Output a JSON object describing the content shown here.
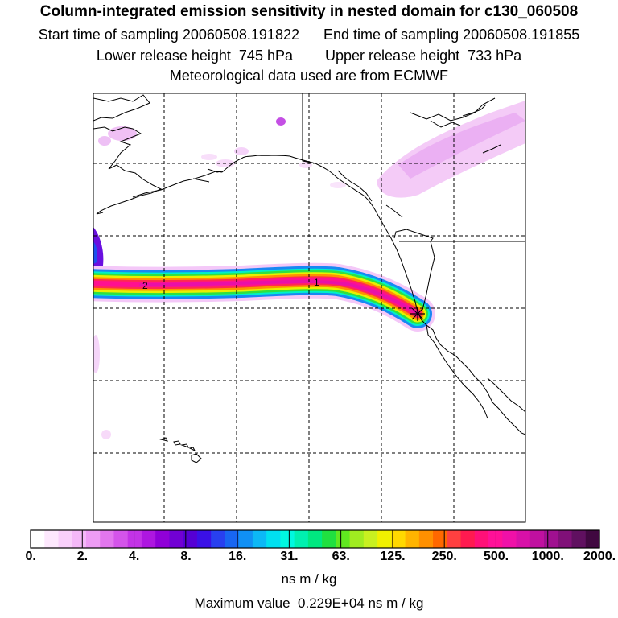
{
  "header": {
    "title": "Column-integrated emission sensitivity in nested domain for c130_060508",
    "start_label": "Start time of sampling 20060508.191822",
    "end_label": "End time of sampling 20060508.191855",
    "lower_label": "Lower release height  745 hPa",
    "upper_label": "Upper release height  733 hPa",
    "met_label": "Meteorological data used are from ECMWF"
  },
  "map": {
    "plume_labels": [
      "2",
      "1"
    ],
    "release_marker": "star"
  },
  "colorbar": {
    "tick_labels": [
      "0.",
      "2.",
      "4.",
      "8.",
      "16.",
      "31.",
      "63.",
      "125.",
      "250.",
      "500.",
      "1000.",
      "2000."
    ],
    "colors": [
      "#ffffff",
      "#fde8fd",
      "#f9d0fb",
      "#f4b8f8",
      "#ee9cf4",
      "#e276ee",
      "#d454ea",
      "#c333e6",
      "#ae17e0",
      "#9000d8",
      "#7100d4",
      "#5500d4",
      "#3a10e6",
      "#2840f0",
      "#1866f2",
      "#1090f4",
      "#0cb8f6",
      "#00e0f0",
      "#00f8e0",
      "#00f0b0",
      "#00e880",
      "#20e040",
      "#60e820",
      "#a0ec20",
      "#c8f020",
      "#f0f000",
      "#ffd800",
      "#ffb400",
      "#ff9000",
      "#ff6800",
      "#ff4040",
      "#ff1a50",
      "#ff1078",
      "#ff1098",
      "#f010a8",
      "#d810a8",
      "#c010a0",
      "#a01090",
      "#801078",
      "#601060",
      "#400840"
    ],
    "units": "ns m / kg",
    "max_label": "Maximum value  0.229E+04 ns m / kg"
  }
}
